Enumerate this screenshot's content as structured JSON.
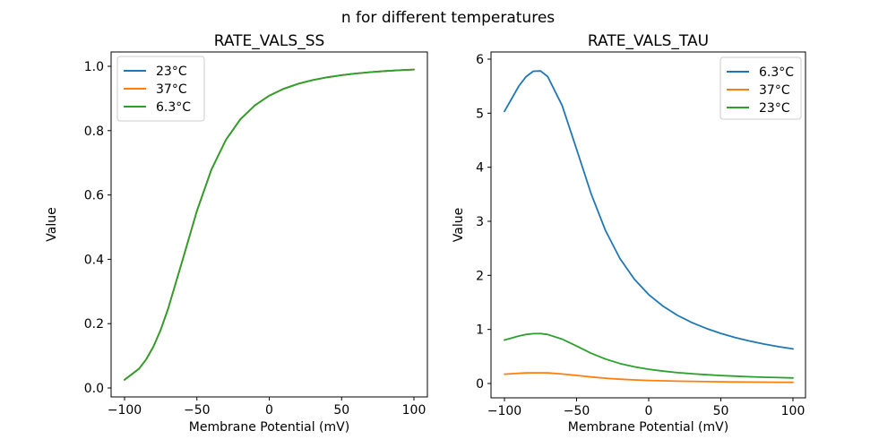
{
  "figure": {
    "suptitle": "n for different temperatures",
    "background": "#ffffff"
  },
  "palette": {
    "blue": "#1f77b4",
    "orange": "#ff7f0e",
    "green": "#2ca02c",
    "axis": "#000000",
    "legend_border": "#cccccc",
    "legend_fill": "#ffffff"
  },
  "chart_data": [
    {
      "type": "line",
      "title": "RATE_VALS_SS",
      "xlabel": "Membrane Potential (mV)",
      "ylabel": "Value",
      "xlim": [
        -110,
        110
      ],
      "ylim": [
        -0.023,
        1.038
      ],
      "grid": false,
      "legend_position": "upper left",
      "x": [
        -100,
        -90,
        -85,
        -80,
        -75,
        -70,
        -60,
        -50,
        -40,
        -30,
        -20,
        -10,
        0,
        10,
        20,
        30,
        40,
        50,
        60,
        70,
        80,
        90,
        100
      ],
      "series": [
        {
          "name": "23°C",
          "color": "#1f77b4",
          "values": [
            0.0254,
            0.06,
            0.0892,
            0.1291,
            0.181,
            0.2446,
            0.3963,
            0.5508,
            0.6786,
            0.7714,
            0.8352,
            0.8786,
            0.9087,
            0.9301,
            0.9456,
            0.9571,
            0.9658,
            0.9725,
            0.9777,
            0.9818,
            0.9851,
            0.9877,
            0.9899
          ]
        },
        {
          "name": "37°C",
          "color": "#ff7f0e",
          "values": [
            0.0254,
            0.06,
            0.0892,
            0.1291,
            0.181,
            0.2446,
            0.3963,
            0.5508,
            0.6786,
            0.7714,
            0.8352,
            0.8786,
            0.9087,
            0.9301,
            0.9456,
            0.9571,
            0.9658,
            0.9725,
            0.9777,
            0.9818,
            0.9851,
            0.9877,
            0.9899
          ]
        },
        {
          "name": "6.3°C",
          "color": "#2ca02c",
          "values": [
            0.0254,
            0.06,
            0.0892,
            0.1291,
            0.181,
            0.2446,
            0.3963,
            0.5508,
            0.6786,
            0.7714,
            0.8352,
            0.8786,
            0.9087,
            0.9301,
            0.9456,
            0.9571,
            0.9658,
            0.9725,
            0.9777,
            0.9818,
            0.9851,
            0.9877,
            0.9899
          ]
        }
      ],
      "xticks": {
        "values": [
          -100,
          -50,
          0,
          50,
          100
        ],
        "labels": [
          "−100",
          "−50",
          "0",
          "50",
          "100"
        ]
      },
      "yticks": {
        "values": [
          0,
          0.2,
          0.4,
          0.6,
          0.8,
          1.0
        ],
        "labels": [
          "0.0",
          "0.2",
          "0.4",
          "0.6",
          "0.8",
          "1.0"
        ]
      },
      "legend": [
        "23°C",
        "37°C",
        "6.3°C"
      ]
    },
    {
      "type": "line",
      "title": "RATE_VALS_TAU",
      "xlabel": "Membrane Potential (mV)",
      "ylabel": "Value",
      "xlim": [
        -110,
        110
      ],
      "ylim": [
        -0.27,
        6.06
      ],
      "grid": false,
      "legend_position": "upper right",
      "x": [
        -100,
        -90,
        -85,
        -80,
        -75,
        -70,
        -60,
        -50,
        -40,
        -30,
        -20,
        -10,
        0,
        10,
        20,
        30,
        40,
        50,
        60,
        70,
        80,
        90,
        100
      ],
      "series": [
        {
          "name": "6.3°C",
          "color": "#1f77b4",
          "values": [
            5.034,
            5.502,
            5.675,
            5.776,
            5.782,
            5.677,
            5.141,
            4.335,
            3.515,
            2.832,
            2.314,
            1.931,
            1.645,
            1.429,
            1.26,
            1.126,
            1.017,
            0.926,
            0.85,
            0.785,
            0.73,
            0.681,
            0.639
          ]
        },
        {
          "name": "37°C",
          "color": "#ff7f0e",
          "values": [
            0.173,
            0.189,
            0.195,
            0.198,
            0.198,
            0.195,
            0.176,
            0.149,
            0.121,
            0.097,
            0.079,
            0.066,
            0.056,
            0.049,
            0.043,
            0.039,
            0.035,
            0.032,
            0.029,
            0.027,
            0.025,
            0.023,
            0.022
          ]
        },
        {
          "name": "23°C",
          "color": "#2ca02c",
          "values": [
            0.804,
            0.878,
            0.906,
            0.922,
            0.923,
            0.906,
            0.821,
            0.692,
            0.561,
            0.452,
            0.369,
            0.308,
            0.263,
            0.228,
            0.201,
            0.18,
            0.162,
            0.148,
            0.136,
            0.125,
            0.116,
            0.109,
            0.102
          ]
        }
      ],
      "xticks": {
        "values": [
          -100,
          -50,
          0,
          50,
          100
        ],
        "labels": [
          "−100",
          "−50",
          "0",
          "50",
          "100"
        ]
      },
      "yticks": {
        "values": [
          0,
          1,
          2,
          3,
          4,
          5,
          6
        ],
        "labels": [
          "0",
          "1",
          "2",
          "3",
          "4",
          "5",
          "6"
        ]
      },
      "legend": [
        "6.3°C",
        "37°C",
        "23°C"
      ]
    }
  ]
}
